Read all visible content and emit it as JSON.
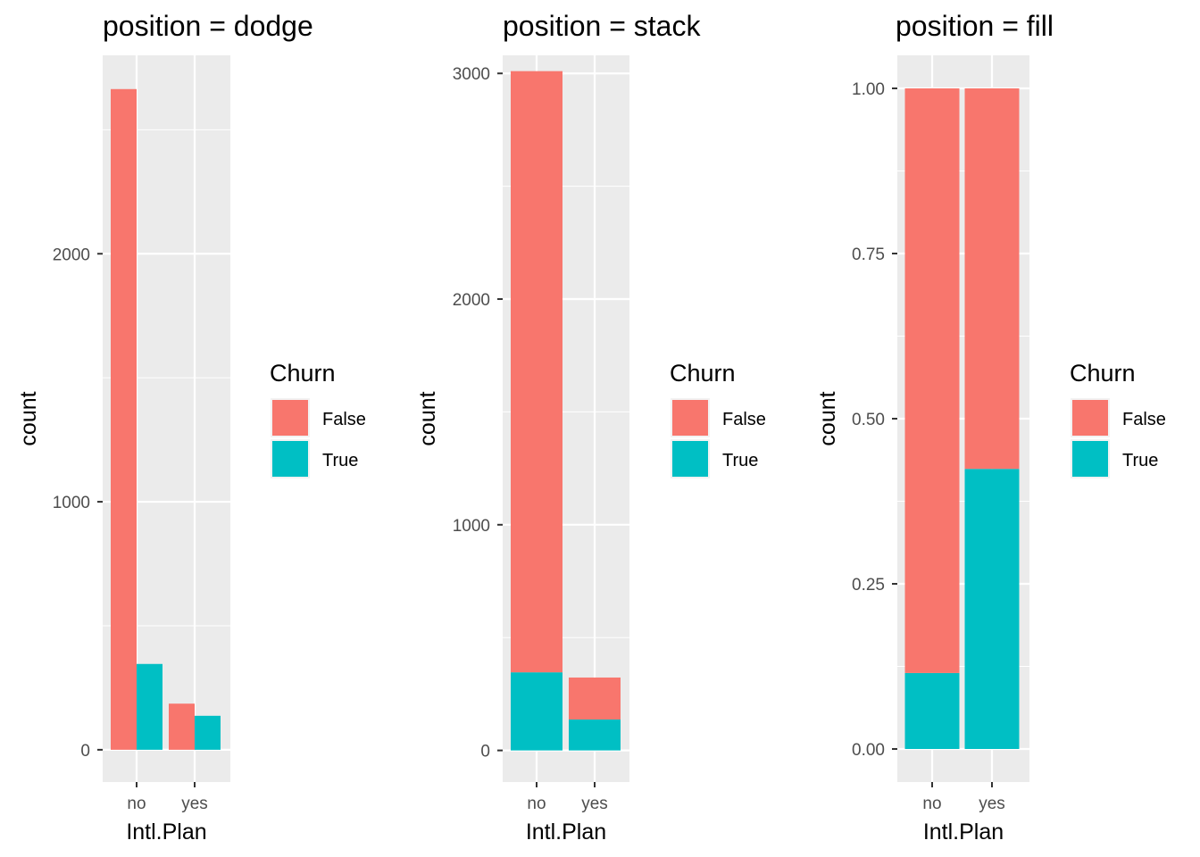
{
  "legend": {
    "title": "Churn",
    "entries": [
      {
        "name": "False",
        "color": "#F8766D"
      },
      {
        "name": "True",
        "color": "#00BFC4"
      }
    ]
  },
  "chart_data": [
    {
      "type": "bar",
      "title": "position = dodge",
      "xlabel": "Intl.Plan",
      "ylabel": "count",
      "categories": [
        "no",
        "yes"
      ],
      "series": [
        {
          "name": "False",
          "values": [
            2664,
            186
          ]
        },
        {
          "name": "True",
          "values": [
            346,
            137
          ]
        }
      ],
      "ylim": [
        -130,
        2800
      ],
      "yticks": [
        0,
        1000,
        2000
      ],
      "ytick_labels": [
        "0",
        "1000",
        "2000"
      ],
      "position": "dodge",
      "grid": true,
      "legend": "right"
    },
    {
      "type": "bar",
      "title": "position = stack",
      "xlabel": "Intl.Plan",
      "ylabel": "count",
      "categories": [
        "no",
        "yes"
      ],
      "series": [
        {
          "name": "False",
          "values": [
            2664,
            186
          ]
        },
        {
          "name": "True",
          "values": [
            346,
            137
          ]
        }
      ],
      "ylim": [
        -140,
        3080
      ],
      "yticks": [
        0,
        1000,
        2000,
        3000
      ],
      "ytick_labels": [
        "0",
        "1000",
        "2000",
        "3000"
      ],
      "position": "stack",
      "grid": true,
      "legend": "right"
    },
    {
      "type": "bar",
      "title": "position = fill",
      "xlabel": "Intl.Plan",
      "ylabel": "count",
      "categories": [
        "no",
        "yes"
      ],
      "series": [
        {
          "name": "False",
          "values": [
            0.885,
            0.576
          ]
        },
        {
          "name": "True",
          "values": [
            0.115,
            0.424
          ]
        }
      ],
      "ylim": [
        -0.05,
        1.05
      ],
      "yticks": [
        0,
        0.25,
        0.5,
        0.75,
        1.0
      ],
      "ytick_labels": [
        "0.00",
        "0.25",
        "0.50",
        "0.75",
        "1.00"
      ],
      "position": "fill",
      "grid": true,
      "legend": "right"
    }
  ]
}
